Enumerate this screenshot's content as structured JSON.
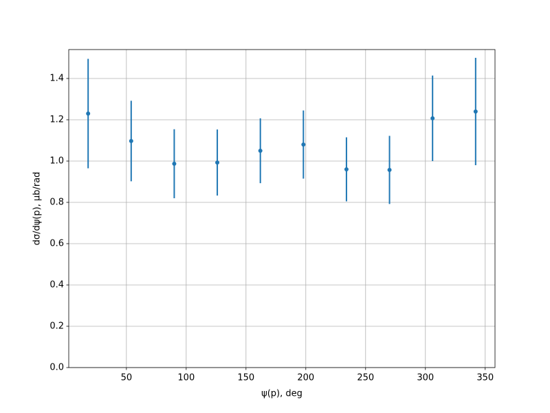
{
  "chart_data": {
    "type": "errorbar",
    "x_label": "ψ(p), deg",
    "y_label": "dσ/dψ(p), μb/rad",
    "x": [
      18,
      54,
      90,
      126,
      162,
      198,
      234,
      270,
      306,
      342
    ],
    "series": [
      {
        "color": "#1f77b4",
        "values": [
          1.23,
          1.097,
          0.987,
          0.993,
          1.05,
          1.08,
          0.96,
          0.957,
          1.207,
          1.24
        ],
        "errors": [
          0.265,
          0.195,
          0.167,
          0.16,
          0.157,
          0.165,
          0.155,
          0.165,
          0.207,
          0.26
        ]
      }
    ],
    "xlim": [
      1.8,
      358.2
    ],
    "ylim": [
      0,
      1.54
    ],
    "xticks": [
      50,
      100,
      150,
      200,
      250,
      300,
      350
    ],
    "yticks": [
      {
        "value": 0,
        "label": "0.0"
      },
      {
        "value": 0.2,
        "label": "0.2"
      },
      {
        "value": 0.4,
        "label": "0.4"
      },
      {
        "value": 0.6,
        "label": "0.6"
      },
      {
        "value": 0.8,
        "label": "0.8"
      },
      {
        "value": 1.0,
        "label": "1.0"
      },
      {
        "value": 1.2,
        "label": "1.2"
      },
      {
        "value": 1.4,
        "label": "1.4"
      }
    ],
    "grid": true
  }
}
